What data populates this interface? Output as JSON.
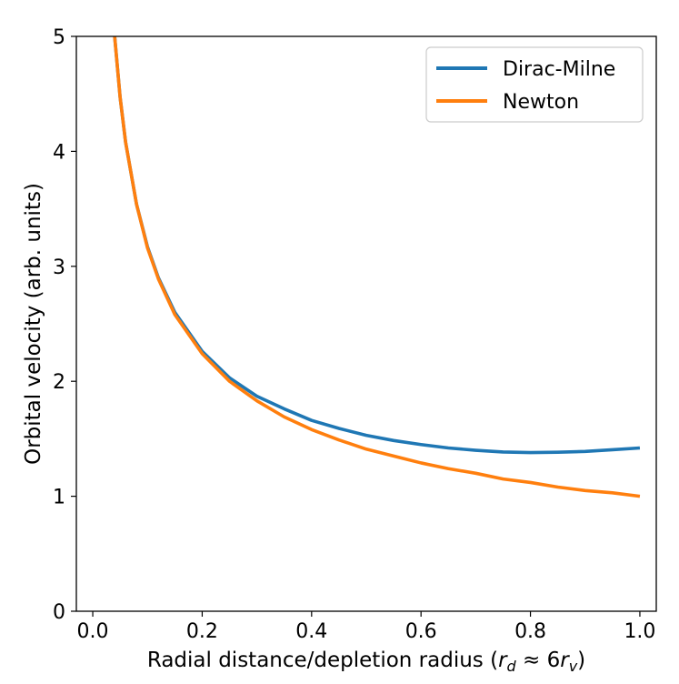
{
  "chart_data": {
    "type": "line",
    "title": "",
    "xlabel": "Radial distance/depletion radius",
    "xlabel_math": {
      "open": "(",
      "r": "r",
      "d": "d",
      "approx": "≈",
      "coef": "6",
      "rv": "r",
      "v": "v",
      "close": ")"
    },
    "ylabel": "Orbital velocity (arb. units)",
    "xlim": [
      -0.03,
      1.03
    ],
    "ylim": [
      0,
      5
    ],
    "xticks": [
      0.0,
      0.2,
      0.4,
      0.6,
      0.8,
      1.0
    ],
    "xtick_labels": [
      "0.0",
      "0.2",
      "0.4",
      "0.6",
      "0.8",
      "1.0"
    ],
    "yticks": [
      0,
      1,
      2,
      3,
      4,
      5
    ],
    "ytick_labels": [
      "0",
      "1",
      "2",
      "3",
      "4",
      "5"
    ],
    "grid": false,
    "legend_position": "top-right",
    "series": [
      {
        "name": "Dirac-Milne",
        "color": "#1f77b4",
        "x": [
          0.04,
          0.05,
          0.06,
          0.08,
          0.1,
          0.12,
          0.15,
          0.2,
          0.25,
          0.3,
          0.35,
          0.4,
          0.45,
          0.5,
          0.55,
          0.6,
          0.65,
          0.7,
          0.75,
          0.8,
          0.85,
          0.9,
          0.95,
          1.0
        ],
        "y": [
          5.0,
          4.47,
          4.08,
          3.54,
          3.17,
          2.9,
          2.6,
          2.26,
          2.03,
          1.87,
          1.76,
          1.66,
          1.59,
          1.53,
          1.485,
          1.45,
          1.42,
          1.4,
          1.385,
          1.38,
          1.383,
          1.39,
          1.405,
          1.42
        ]
      },
      {
        "name": "Newton",
        "color": "#ff7f0e",
        "x": [
          0.04,
          0.05,
          0.06,
          0.08,
          0.1,
          0.12,
          0.15,
          0.2,
          0.25,
          0.3,
          0.35,
          0.4,
          0.45,
          0.5,
          0.55,
          0.6,
          0.65,
          0.7,
          0.75,
          0.8,
          0.85,
          0.9,
          0.95,
          1.0
        ],
        "y": [
          5.0,
          4.47,
          4.08,
          3.54,
          3.16,
          2.89,
          2.58,
          2.24,
          2.0,
          1.83,
          1.69,
          1.58,
          1.49,
          1.41,
          1.35,
          1.29,
          1.24,
          1.2,
          1.15,
          1.12,
          1.08,
          1.05,
          1.03,
          1.0
        ]
      }
    ]
  }
}
